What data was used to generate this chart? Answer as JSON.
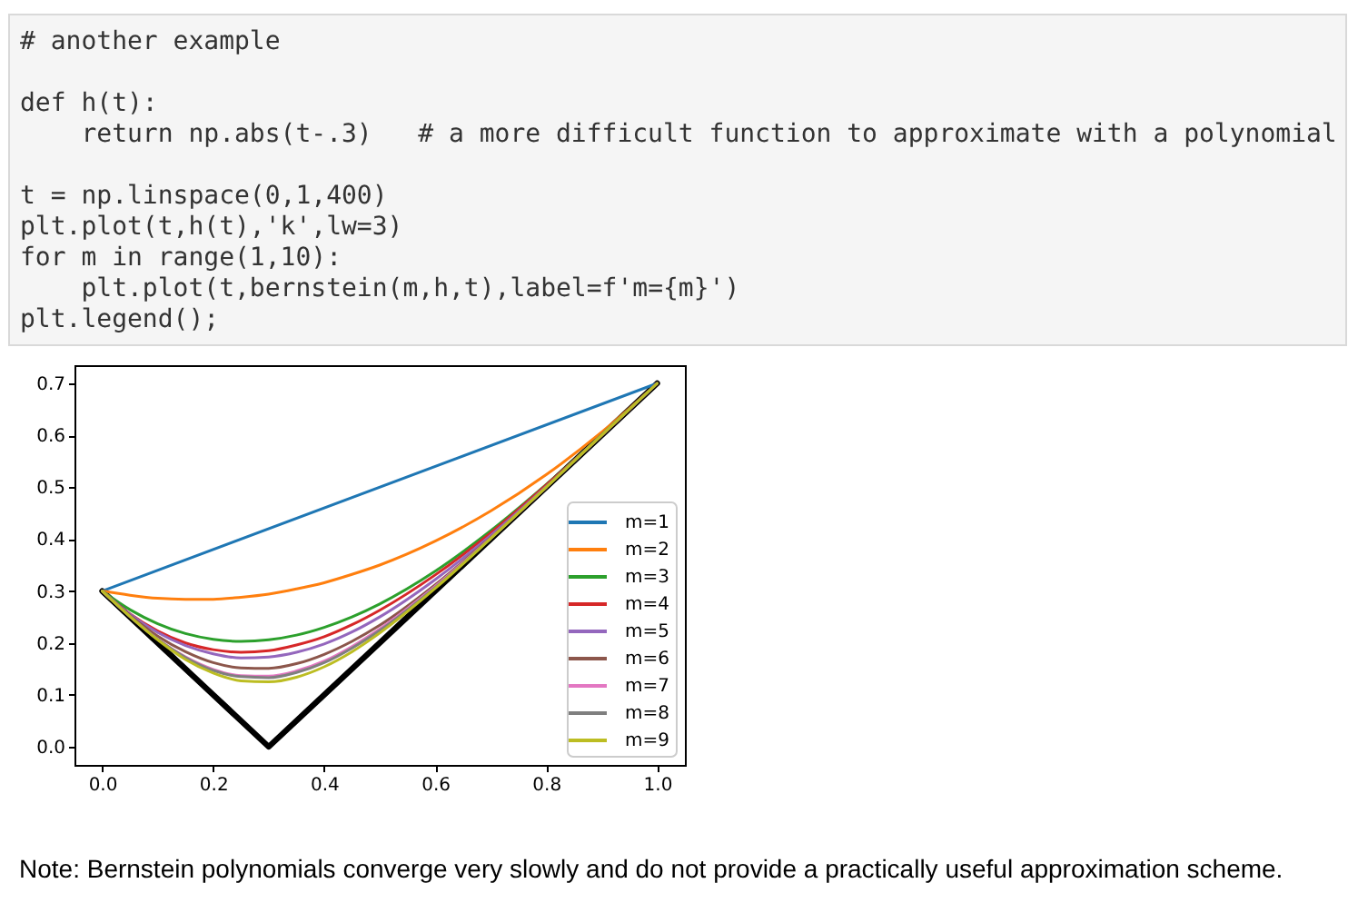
{
  "chart_data": {
    "type": "line",
    "x": [
      0,
      0.05,
      0.1,
      0.15,
      0.2,
      0.25,
      0.3,
      0.35,
      0.4,
      0.45,
      0.5,
      0.6,
      0.7,
      0.8,
      0.9,
      1
    ],
    "series": [
      {
        "color": "#000000",
        "x": [
          0,
          0.3,
          1
        ],
        "values": [
          0.3,
          0,
          0.7
        ]
      },
      {
        "name": "m=1",
        "color": "#1f77b4",
        "x": [
          0,
          1
        ],
        "values": [
          0.3,
          0.7
        ]
      },
      {
        "name": "m=2",
        "color": "#ff7f0e",
        "values": [
          0.3,
          0.292,
          0.286,
          0.284,
          0.284,
          0.288,
          0.294,
          0.304,
          0.316,
          0.332,
          0.35,
          0.396,
          0.454,
          0.524,
          0.606,
          0.7
        ]
      },
      {
        "name": "m=3",
        "color": "#2ca02c",
        "values": [
          0.3,
          0.264,
          0.237,
          0.218,
          0.207,
          0.203,
          0.206,
          0.215,
          0.23,
          0.25,
          0.275,
          0.338,
          0.416,
          0.505,
          0.601,
          0.7
        ]
      },
      {
        "name": "m=4",
        "color": "#d62728",
        "values": [
          0.3,
          0.256,
          0.223,
          0.2,
          0.187,
          0.182,
          0.185,
          0.196,
          0.212,
          0.235,
          0.263,
          0.331,
          0.412,
          0.504,
          0.6,
          0.7
        ]
      },
      {
        "name": "m=5",
        "color": "#9467bd",
        "values": [
          0.3,
          0.255,
          0.22,
          0.195,
          0.179,
          0.171,
          0.173,
          0.182,
          0.198,
          0.221,
          0.25,
          0.322,
          0.407,
          0.501,
          0.6,
          0.7
        ]
      },
      {
        "name": "m=6",
        "color": "#8c564b",
        "values": [
          0.3,
          0.253,
          0.213,
          0.183,
          0.162,
          0.152,
          0.151,
          0.16,
          0.178,
          0.203,
          0.234,
          0.312,
          0.403,
          0.5,
          0.6,
          0.7
        ]
      },
      {
        "name": "m=7",
        "color": "#e377c2",
        "values": [
          0.3,
          0.251,
          0.207,
          0.173,
          0.149,
          0.137,
          0.136,
          0.146,
          0.165,
          0.193,
          0.227,
          0.309,
          0.402,
          0.5,
          null,
          null
        ]
      },
      {
        "name": "m=8",
        "color": "#7f7f7f",
        "values": [
          0.3,
          0.251,
          0.207,
          0.172,
          0.147,
          0.135,
          0.133,
          0.143,
          0.162,
          0.19,
          0.224,
          0.307,
          0.401,
          0.5,
          0.6,
          0.7
        ]
      },
      {
        "name": "m=9",
        "color": "#bcbd22",
        "values": [
          0.3,
          0.251,
          0.206,
          0.168,
          0.142,
          0.127,
          0.125,
          0.134,
          0.154,
          0.183,
          0.219,
          0.305,
          0.401,
          0.5,
          0.6,
          0.7
        ]
      }
    ],
    "xlim": [
      -0.05,
      1.05
    ],
    "ylim": [
      -0.035,
      0.735
    ],
    "xticks": [
      {
        "value": 0,
        "label": "0.0"
      },
      0.2,
      0.4,
      0.6,
      0.8,
      {
        "value": 1,
        "label": "1.0"
      }
    ],
    "yticks": [
      {
        "value": 0,
        "label": "0.0"
      },
      0.1,
      0.2,
      0.3,
      0.4,
      0.5,
      0.6,
      0.7
    ],
    "legend": "bottom right",
    "annotations": [
      "# another example\n\ndef h(t):\n    return np.abs(t-.3)   # a more difficult function to approximate with a polynomial\n\nt = np.linspace(0,1,400)\nplt.plot(t,h(t),'k',lw=3)\nfor m in range(1,10):\n    plt.plot(t,bernstein(m,h,t),label=f'm={m}')\nplt.legend();",
      "Note: Bernstein polynomials converge very slowly and do not provide a practically useful approximation scheme."
    ]
  }
}
